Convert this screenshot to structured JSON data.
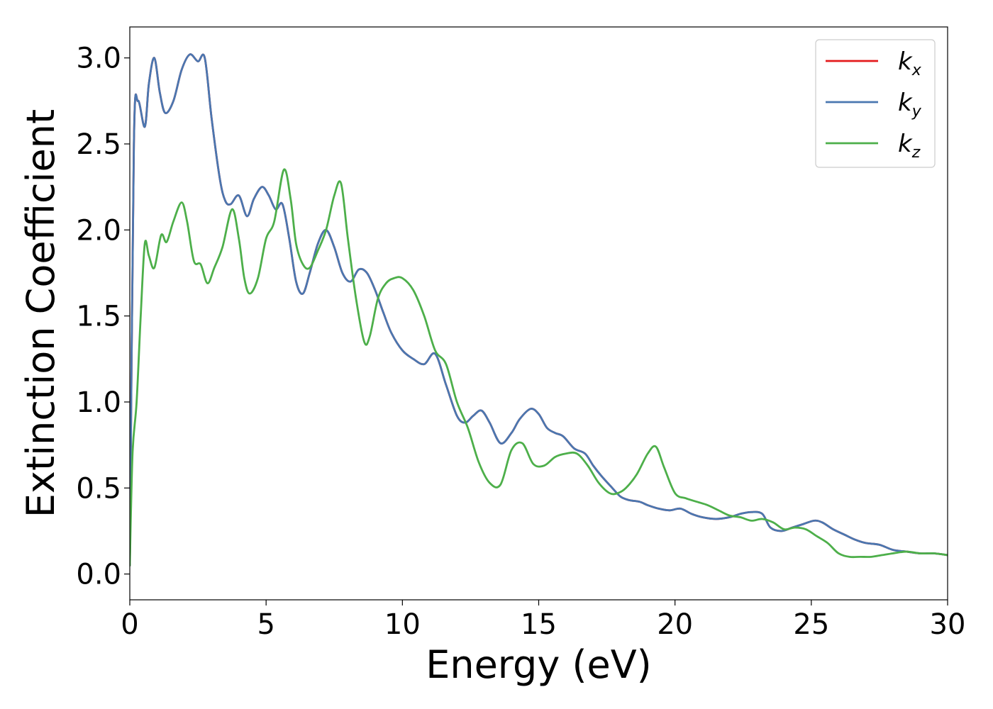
{
  "chart_data": {
    "type": "line",
    "xlabel": "Energy (eV)",
    "ylabel": "Extinction Coefficient",
    "xlim": [
      0,
      30
    ],
    "ylim": [
      -0.15,
      3.18
    ],
    "xticks": [
      0,
      5,
      10,
      15,
      20,
      25,
      30
    ],
    "xtick_labels": [
      "0",
      "5",
      "10",
      "15",
      "20",
      "25",
      "30"
    ],
    "yticks": [
      0.0,
      0.5,
      1.0,
      1.5,
      2.0,
      2.5,
      3.0
    ],
    "ytick_labels": [
      "0.0",
      "0.5",
      "1.0",
      "1.5",
      "2.0",
      "2.5",
      "3.0"
    ],
    "grid": false,
    "legend_position": "top-right",
    "series": [
      {
        "name": "k_x",
        "label_main": "k",
        "label_sub": "x",
        "color": "#e41a1c",
        "x": [
          0,
          0.15,
          0.3,
          0.55,
          0.7,
          0.9,
          1.1,
          1.3,
          1.6,
          1.9,
          2.2,
          2.5,
          2.75,
          3.0,
          3.3,
          3.5,
          3.7,
          4.0,
          4.3,
          4.55,
          4.85,
          5.1,
          5.35,
          5.6,
          5.85,
          6.1,
          6.35,
          6.6,
          6.9,
          7.2,
          7.5,
          7.8,
          8.1,
          8.4,
          8.7,
          9.0,
          9.3,
          9.6,
          10.0,
          10.4,
          10.8,
          11.2,
          11.6,
          12.0,
          12.3,
          12.6,
          12.9,
          13.2,
          13.6,
          14.0,
          14.3,
          14.7,
          15.0,
          15.3,
          15.6,
          15.9,
          16.3,
          16.7,
          17.0,
          17.3,
          17.7,
          18.0,
          18.3,
          18.7,
          19.0,
          19.4,
          19.8,
          20.2,
          20.6,
          21.0,
          21.5,
          22.0,
          22.4,
          22.8,
          23.2,
          23.5,
          23.9,
          24.3,
          24.7,
          25.1,
          25.4,
          25.8,
          26.2,
          26.6,
          27.0,
          27.5,
          28.0,
          28.5,
          29.0,
          29.5,
          30.0
        ],
        "y": [
          0.05,
          2.5,
          2.75,
          2.6,
          2.85,
          3.0,
          2.8,
          2.68,
          2.75,
          2.93,
          3.02,
          2.98,
          3.0,
          2.65,
          2.3,
          2.17,
          2.15,
          2.2,
          2.08,
          2.18,
          2.25,
          2.2,
          2.12,
          2.15,
          1.95,
          1.7,
          1.63,
          1.75,
          1.92,
          2.0,
          1.9,
          1.75,
          1.7,
          1.77,
          1.75,
          1.65,
          1.52,
          1.4,
          1.3,
          1.25,
          1.22,
          1.28,
          1.1,
          0.92,
          0.88,
          0.92,
          0.95,
          0.88,
          0.76,
          0.82,
          0.9,
          0.96,
          0.93,
          0.85,
          0.82,
          0.8,
          0.73,
          0.7,
          0.63,
          0.57,
          0.5,
          0.45,
          0.43,
          0.42,
          0.4,
          0.38,
          0.37,
          0.38,
          0.35,
          0.33,
          0.32,
          0.33,
          0.35,
          0.36,
          0.35,
          0.27,
          0.25,
          0.27,
          0.29,
          0.31,
          0.3,
          0.26,
          0.23,
          0.2,
          0.18,
          0.17,
          0.14,
          0.13,
          0.12,
          0.12,
          0.11
        ]
      },
      {
        "name": "k_y",
        "label_main": "k",
        "label_sub": "y",
        "color": "#4a77b0",
        "x": [
          0,
          0.15,
          0.3,
          0.55,
          0.7,
          0.9,
          1.1,
          1.3,
          1.6,
          1.9,
          2.2,
          2.5,
          2.75,
          3.0,
          3.3,
          3.5,
          3.7,
          4.0,
          4.3,
          4.55,
          4.85,
          5.1,
          5.35,
          5.6,
          5.85,
          6.1,
          6.35,
          6.6,
          6.9,
          7.2,
          7.5,
          7.8,
          8.1,
          8.4,
          8.7,
          9.0,
          9.3,
          9.6,
          10.0,
          10.4,
          10.8,
          11.2,
          11.6,
          12.0,
          12.3,
          12.6,
          12.9,
          13.2,
          13.6,
          14.0,
          14.3,
          14.7,
          15.0,
          15.3,
          15.6,
          15.9,
          16.3,
          16.7,
          17.0,
          17.3,
          17.7,
          18.0,
          18.3,
          18.7,
          19.0,
          19.4,
          19.8,
          20.2,
          20.6,
          21.0,
          21.5,
          22.0,
          22.4,
          22.8,
          23.2,
          23.5,
          23.9,
          24.3,
          24.7,
          25.1,
          25.4,
          25.8,
          26.2,
          26.6,
          27.0,
          27.5,
          28.0,
          28.5,
          29.0,
          29.5,
          30.0
        ],
        "y": [
          0.05,
          2.5,
          2.75,
          2.6,
          2.85,
          3.0,
          2.8,
          2.68,
          2.75,
          2.93,
          3.02,
          2.98,
          3.0,
          2.65,
          2.3,
          2.17,
          2.15,
          2.2,
          2.08,
          2.18,
          2.25,
          2.2,
          2.12,
          2.15,
          1.95,
          1.7,
          1.63,
          1.75,
          1.92,
          2.0,
          1.9,
          1.75,
          1.7,
          1.77,
          1.75,
          1.65,
          1.52,
          1.4,
          1.3,
          1.25,
          1.22,
          1.28,
          1.1,
          0.92,
          0.88,
          0.92,
          0.95,
          0.88,
          0.76,
          0.82,
          0.9,
          0.96,
          0.93,
          0.85,
          0.82,
          0.8,
          0.73,
          0.7,
          0.63,
          0.57,
          0.5,
          0.45,
          0.43,
          0.42,
          0.4,
          0.38,
          0.37,
          0.38,
          0.35,
          0.33,
          0.32,
          0.33,
          0.35,
          0.36,
          0.35,
          0.27,
          0.25,
          0.27,
          0.29,
          0.31,
          0.3,
          0.26,
          0.23,
          0.2,
          0.18,
          0.17,
          0.14,
          0.13,
          0.12,
          0.12,
          0.11
        ]
      },
      {
        "name": "k_z",
        "label_main": "k",
        "label_sub": "z",
        "color": "#4daf4a",
        "x": [
          0,
          0.1,
          0.25,
          0.4,
          0.55,
          0.7,
          0.9,
          1.15,
          1.35,
          1.6,
          1.9,
          2.1,
          2.35,
          2.6,
          2.85,
          3.1,
          3.4,
          3.75,
          4.0,
          4.2,
          4.4,
          4.7,
          5.0,
          5.3,
          5.65,
          5.9,
          6.1,
          6.35,
          6.6,
          6.9,
          7.2,
          7.5,
          7.75,
          8.0,
          8.3,
          8.6,
          8.8,
          9.1,
          9.4,
          9.7,
          10.0,
          10.4,
          10.8,
          11.2,
          11.6,
          12.0,
          12.4,
          12.8,
          13.2,
          13.6,
          14.0,
          14.4,
          14.8,
          15.2,
          15.6,
          16.0,
          16.4,
          16.8,
          17.2,
          17.6,
          17.9,
          18.2,
          18.6,
          19.0,
          19.3,
          19.6,
          20.0,
          20.4,
          20.8,
          21.2,
          21.6,
          22.0,
          22.4,
          22.8,
          23.2,
          23.6,
          24.0,
          24.4,
          24.8,
          25.2,
          25.6,
          26.0,
          26.4,
          26.8,
          27.2,
          27.6,
          28.0,
          28.5,
          29.0,
          29.5,
          30.0
        ],
        "y": [
          0.05,
          0.7,
          1.0,
          1.5,
          1.92,
          1.85,
          1.78,
          1.97,
          1.93,
          2.05,
          2.16,
          2.05,
          1.82,
          1.8,
          1.69,
          1.78,
          1.9,
          2.12,
          1.95,
          1.72,
          1.63,
          1.72,
          1.95,
          2.05,
          2.35,
          2.18,
          1.92,
          1.8,
          1.78,
          1.88,
          2.0,
          2.2,
          2.27,
          1.95,
          1.6,
          1.35,
          1.38,
          1.6,
          1.69,
          1.72,
          1.72,
          1.65,
          1.5,
          1.3,
          1.22,
          1.0,
          0.85,
          0.65,
          0.53,
          0.52,
          0.72,
          0.76,
          0.64,
          0.63,
          0.68,
          0.7,
          0.7,
          0.63,
          0.53,
          0.47,
          0.47,
          0.5,
          0.58,
          0.7,
          0.74,
          0.62,
          0.47,
          0.44,
          0.42,
          0.4,
          0.37,
          0.34,
          0.33,
          0.31,
          0.32,
          0.3,
          0.26,
          0.27,
          0.26,
          0.22,
          0.18,
          0.12,
          0.1,
          0.1,
          0.1,
          0.11,
          0.12,
          0.13,
          0.12,
          0.12,
          0.11
        ]
      }
    ]
  }
}
